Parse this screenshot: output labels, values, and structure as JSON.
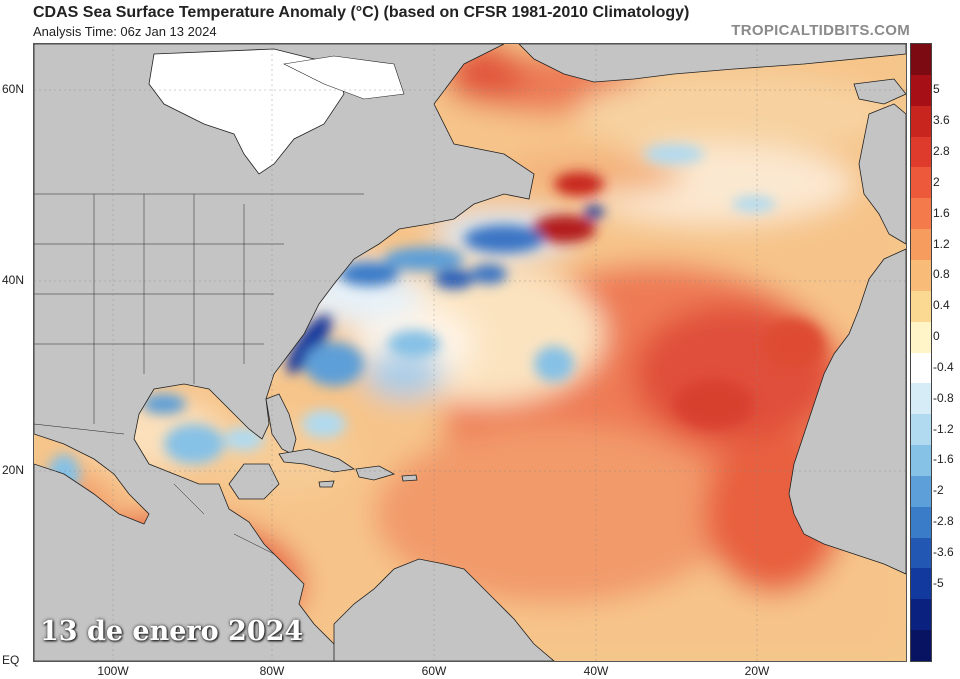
{
  "header": {
    "title": "CDAS Sea Surface Temperature Anomaly (°C) (based on CFSR 1981-2010 Climatology)",
    "subtitle": "Analysis Time: 06z Jan 13 2024",
    "credit": "TROPICALTIDBITS.COM"
  },
  "map": {
    "date_label": "13 de enero 2024",
    "lat_labels": [
      "60N",
      "40N",
      "20N",
      "EQ"
    ],
    "lon_labels": [
      "100W",
      "80W",
      "60W",
      "40W",
      "20W"
    ]
  },
  "colorbar": {
    "ticks": [
      "5",
      "3.6",
      "2.8",
      "2",
      "1.6",
      "1.2",
      "0.8",
      "0.4",
      "0",
      "-0.4",
      "-0.8",
      "-1.2",
      "-1.6",
      "-2",
      "-2.8",
      "-3.6",
      "-5"
    ],
    "colors": [
      "#7b0a12",
      "#a50f15",
      "#c8251f",
      "#de3b2c",
      "#ec5a3b",
      "#f47a4c",
      "#f79c5f",
      "#f9bb78",
      "#fbd993",
      "#fff5c8",
      "#ffffff",
      "#d6ecf7",
      "#b1daf0",
      "#86c1e6",
      "#5d9fd8",
      "#3a7cc8",
      "#2258b4",
      "#12399d",
      "#0b2180",
      "#081462"
    ]
  }
}
